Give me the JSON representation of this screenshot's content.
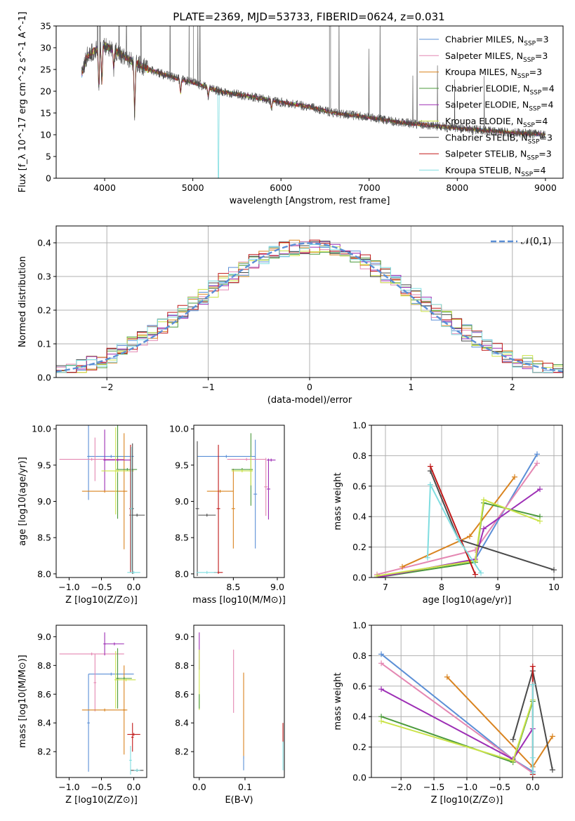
{
  "figure": {
    "title": "PLATE=2369, MJD=53733, FIBERID=0624, z=0.031"
  },
  "models": [
    {
      "name": "Chabrier MILES",
      "n_ssp": "3",
      "color": "#5b8fd6"
    },
    {
      "name": "Salpeter MILES",
      "n_ssp": "3",
      "color": "#e487b2"
    },
    {
      "name": "Kroupa MILES",
      "n_ssp": "3",
      "color": "#d9831f"
    },
    {
      "name": "Chabrier ELODIE",
      "n_ssp": "4",
      "color": "#4b9a3c"
    },
    {
      "name": "Salpeter ELODIE",
      "n_ssp": "4",
      "color": "#9d2eb5"
    },
    {
      "name": "Kroupa ELODIE",
      "n_ssp": "4",
      "color": "#cbe34a"
    },
    {
      "name": "Chabrier STELIB",
      "n_ssp": "3",
      "color": "#4a4a4a"
    },
    {
      "name": "Salpeter STELIB",
      "n_ssp": "3",
      "color": "#c01818"
    },
    {
      "name": "Kroupa STELIB",
      "n_ssp": "4",
      "color": "#7fdde0"
    }
  ],
  "chart_data": [
    {
      "id": "spectrum",
      "type": "line",
      "xlabel": "wavelength [Angstrom, rest frame]",
      "ylabel": "Flux [f_λ 10^-17 erg cm^-2 s^-1 A^-1]",
      "xlim": [
        3450,
        9200
      ],
      "ylim": [
        0,
        35
      ],
      "xticks": [
        4000,
        5000,
        6000,
        7000,
        8000,
        9000
      ],
      "yticks": [
        0,
        5,
        10,
        15,
        20,
        25,
        30,
        35
      ],
      "grid": false,
      "legend": "top-right",
      "continuum": {
        "x": [
          3740,
          3800,
          3900,
          4000,
          4100,
          4300,
          4500,
          4800,
          5000,
          5300,
          5600,
          6000,
          6300,
          6600,
          7000,
          7300,
          7500,
          8000,
          8500,
          9000
        ],
        "y": [
          24,
          28,
          29.5,
          30.5,
          29.5,
          27,
          25,
          23,
          22,
          20,
          19,
          17.5,
          16.5,
          15,
          14,
          13,
          12.5,
          11.5,
          10.7,
          10
        ]
      },
      "absorption_lines": [
        {
          "x": 3934,
          "depth": 9
        },
        {
          "x": 3969,
          "depth": 8
        },
        {
          "x": 4102,
          "depth": 4
        },
        {
          "x": 4340,
          "depth": 12
        },
        {
          "x": 4861,
          "depth": 3
        },
        {
          "x": 5175,
          "depth": 2
        },
        {
          "x": 5893,
          "depth": 2
        }
      ],
      "model_dropouts": [
        {
          "x": 3880,
          "model": "Kroupa MILES"
        },
        {
          "x": 5290,
          "model": "Kroupa STELIB"
        },
        {
          "x": 6790,
          "model": "Kroupa MILES"
        },
        {
          "x": 7420,
          "model": "Kroupa MILES"
        }
      ]
    },
    {
      "id": "residuals",
      "type": "line",
      "xlabel": "(data-model)/error",
      "ylabel": "Normed distribution",
      "xlim": [
        -2.5,
        2.5
      ],
      "ylim": [
        0,
        0.45
      ],
      "xticks": [
        -2,
        -1,
        0,
        1,
        2
      ],
      "xtick_labels": [
        "−2",
        "−1",
        "0",
        "1",
        "2"
      ],
      "yticks": [
        0,
        0.1,
        0.2,
        0.3,
        0.4
      ],
      "ytick_labels": [
        "0.0",
        "0.1",
        "0.2",
        "0.3",
        "0.4"
      ],
      "grid": true,
      "legend": "top-right",
      "reference_label": "𝒩(0,1)",
      "reference_color": "#5b8fd6",
      "histogram_bin_width": 0.1
    },
    {
      "id": "age_vs_Z",
      "type": "scatter",
      "xlabel": "Z [log10(Z/Z⊙)]",
      "ylabel": "age  [log10(age/yr)]",
      "xlim": [
        -1.2,
        0.2
      ],
      "ylim": [
        7.95,
        10.05
      ],
      "xticks": [
        -1,
        -0.5,
        0
      ],
      "xtick_labels": [
        "−1.0",
        "−0.5",
        "0.0"
      ],
      "yticks": [
        8,
        8.5,
        9,
        9.5,
        10
      ],
      "ytick_labels": [
        "8.0",
        "8.5",
        "9.0",
        "9.5",
        "10.0"
      ],
      "points": [
        {
          "x": -0.35,
          "y": 9.62,
          "xerr": 0.35,
          "yerr": 0.02,
          "color": "#5b8fd6"
        },
        {
          "x": -0.7,
          "y": 9.62,
          "xerr": 0.02,
          "yerr": 0.6,
          "color": "#5b8fd6"
        },
        {
          "x": -0.65,
          "y": 9.58,
          "xerr": 0.5,
          "yerr": 0.02,
          "color": "#e487b2"
        },
        {
          "x": -0.6,
          "y": 9.58,
          "xerr": 0.02,
          "yerr": 0.3,
          "color": "#e487b2"
        },
        {
          "x": -0.45,
          "y": 9.14,
          "xerr": 0.35,
          "yerr": 0.02,
          "color": "#d9831f"
        },
        {
          "x": -0.15,
          "y": 9.14,
          "xerr": 0.02,
          "yerr": 0.8,
          "color": "#d9831f"
        },
        {
          "x": -0.1,
          "y": 9.44,
          "xerr": 0.15,
          "yerr": 0.02,
          "color": "#4b9a3c"
        },
        {
          "x": -0.25,
          "y": 9.44,
          "xerr": 0.02,
          "yerr": 0.68,
          "color": "#4b9a3c"
        },
        {
          "x": -0.45,
          "y": 9.57,
          "xerr": 0.02,
          "yerr": 0.42,
          "color": "#9d2eb5"
        },
        {
          "x": -0.25,
          "y": 9.57,
          "xerr": 0.2,
          "yerr": 0.02,
          "color": "#9d2eb5"
        },
        {
          "x": -0.25,
          "y": 9.42,
          "xerr": 0.25,
          "yerr": 0.02,
          "color": "#cbe34a"
        },
        {
          "x": -0.28,
          "y": 9.42,
          "xerr": 0.02,
          "yerr": 0.6,
          "color": "#cbe34a"
        },
        {
          "x": 0.05,
          "y": 8.81,
          "xerr": 0.12,
          "yerr": 0.02,
          "color": "#4a4a4a"
        },
        {
          "x": -0.02,
          "y": 8.9,
          "xerr": 0.02,
          "yerr": 0.9,
          "color": "#4a4a4a"
        },
        {
          "x": -0.05,
          "y": 8.9,
          "xerr": 0.02,
          "yerr": 0.88,
          "color": "#c01818"
        },
        {
          "x": 0.0,
          "y": 8.02,
          "xerr": 0.1,
          "yerr": 0.02,
          "color": "#7fdde0"
        },
        {
          "x": -0.04,
          "y": 8.9,
          "xerr": 0.02,
          "yerr": 0.85,
          "color": "#7fdde0"
        }
      ]
    },
    {
      "id": "age_vs_mass",
      "type": "scatter",
      "xlabel": "mass [log10(M/M⊙)]",
      "ylabel": "",
      "xlim": [
        8.05,
        9.08
      ],
      "ylim": [
        7.95,
        10.05
      ],
      "xticks": [
        8.5,
        9
      ],
      "xtick_labels": [
        "8.5",
        "9.0"
      ],
      "yticks": [
        8,
        8.5,
        9,
        9.5,
        10
      ],
      "ytick_labels": [
        "8.0",
        "8.5",
        "9.0",
        "9.5",
        "10.0"
      ],
      "points": [
        {
          "x": 8.42,
          "y": 9.62,
          "xerr": 0.33,
          "yerr": 0.02,
          "color": "#5b8fd6"
        },
        {
          "x": 8.75,
          "y": 9.1,
          "xerr": 0.02,
          "yerr": 0.75,
          "color": "#5b8fd6"
        },
        {
          "x": 8.65,
          "y": 9.58,
          "xerr": 0.22,
          "yerr": 0.02,
          "color": "#e487b2"
        },
        {
          "x": 8.87,
          "y": 9.2,
          "xerr": 0.02,
          "yerr": 0.4,
          "color": "#e487b2"
        },
        {
          "x": 8.35,
          "y": 9.14,
          "xerr": 0.15,
          "yerr": 0.02,
          "color": "#d9831f"
        },
        {
          "x": 8.5,
          "y": 8.9,
          "xerr": 0.02,
          "yerr": 0.55,
          "color": "#d9831f"
        },
        {
          "x": 8.7,
          "y": 9.44,
          "xerr": 0.02,
          "yerr": 0.5,
          "color": "#4b9a3c"
        },
        {
          "x": 8.6,
          "y": 9.44,
          "xerr": 0.12,
          "yerr": 0.02,
          "color": "#4b9a3c"
        },
        {
          "x": 8.9,
          "y": 9.17,
          "xerr": 0.02,
          "yerr": 0.42,
          "color": "#9d2eb5"
        },
        {
          "x": 8.93,
          "y": 9.57,
          "xerr": 0.05,
          "yerr": 0.02,
          "color": "#9d2eb5"
        },
        {
          "x": 8.7,
          "y": 9.42,
          "xerr": 0.02,
          "yerr": 0.2,
          "color": "#cbe34a"
        },
        {
          "x": 8.6,
          "y": 9.42,
          "xerr": 0.12,
          "yerr": 0.02,
          "color": "#cbe34a"
        },
        {
          "x": 8.2,
          "y": 8.81,
          "xerr": 0.1,
          "yerr": 0.02,
          "color": "#4a4a4a"
        },
        {
          "x": 8.09,
          "y": 8.9,
          "xerr": 0.02,
          "yerr": 0.93,
          "color": "#4a4a4a"
        },
        {
          "x": 8.33,
          "y": 8.9,
          "xerr": 0.02,
          "yerr": 0.88,
          "color": "#c01818"
        },
        {
          "x": 8.33,
          "y": 8.02,
          "xerr": 0.05,
          "yerr": 0.02,
          "color": "#c01818"
        },
        {
          "x": 8.2,
          "y": 8.02,
          "xerr": 0.12,
          "yerr": 0.02,
          "color": "#7fdde0"
        }
      ]
    },
    {
      "id": "weight_vs_age",
      "type": "line",
      "xlabel": "age  [log10(age/yr)]",
      "ylabel": "mass weight",
      "xlim": [
        6.75,
        10.15
      ],
      "ylim": [
        0,
        1
      ],
      "xticks": [
        7,
        8,
        9,
        10
      ],
      "xtick_labels": [
        "7",
        "8",
        "9",
        "10"
      ],
      "yticks": [
        0,
        0.2,
        0.4,
        0.6,
        0.8,
        1
      ],
      "ytick_labels": [
        "0.0",
        "0.2",
        "0.4",
        "0.6",
        "0.8",
        "1.0"
      ],
      "grid": true,
      "series": [
        {
          "model": "Chabrier MILES",
          "x": [
            8.6,
            9.7
          ],
          "y": [
            0.12,
            0.81
          ]
        },
        {
          "model": "Salpeter MILES",
          "x": [
            6.85,
            8.6,
            9.7
          ],
          "y": [
            0.02,
            0.18,
            0.75
          ]
        },
        {
          "model": "Kroupa MILES",
          "x": [
            7.3,
            8.5,
            9.3
          ],
          "y": [
            0.07,
            0.27,
            0.66
          ]
        },
        {
          "model": "Chabrier ELODIE",
          "x": [
            6.85,
            8.6,
            8.75,
            9.75
          ],
          "y": [
            0.0,
            0.1,
            0.49,
            0.4
          ]
        },
        {
          "model": "Salpeter ELODIE",
          "x": [
            6.85,
            8.6,
            8.75,
            9.75
          ],
          "y": [
            0.0,
            0.12,
            0.32,
            0.58
          ]
        },
        {
          "model": "Kroupa ELODIE",
          "x": [
            6.85,
            8.6,
            8.75,
            9.75
          ],
          "y": [
            0.01,
            0.11,
            0.51,
            0.37
          ]
        },
        {
          "model": "Chabrier STELIB",
          "x": [
            7.8,
            8.3,
            10.0
          ],
          "y": [
            0.7,
            0.25,
            0.05
          ]
        },
        {
          "model": "Salpeter STELIB",
          "x": [
            7.8,
            8.6
          ],
          "y": [
            0.73,
            0.02
          ]
        },
        {
          "model": "Kroupa STELIB",
          "x": [
            7.75,
            7.8,
            8.3,
            8.7
          ],
          "y": [
            0.13,
            0.61,
            0.25,
            0.03
          ]
        }
      ]
    },
    {
      "id": "mass_vs_Z",
      "type": "scatter",
      "xlabel": "Z [log10(Z/Z⊙)]",
      "ylabel": "mass [log10(M/M⊙)]",
      "xlim": [
        -1.2,
        0.2
      ],
      "ylim": [
        8.02,
        9.08
      ],
      "xticks": [
        -1,
        -0.5,
        0
      ],
      "xtick_labels": [
        "−1.0",
        "−0.5",
        "0.0"
      ],
      "yticks": [
        8.2,
        8.4,
        8.6,
        8.8,
        9
      ],
      "ytick_labels": [
        "8.2",
        "8.4",
        "8.6",
        "8.8",
        "9.0"
      ],
      "points": [
        {
          "x": -0.35,
          "y": 8.74,
          "xerr": 0.35,
          "yerr": 0.01,
          "color": "#5b8fd6"
        },
        {
          "x": -0.7,
          "y": 8.4,
          "xerr": 0.02,
          "yerr": 0.34,
          "color": "#5b8fd6"
        },
        {
          "x": -0.65,
          "y": 8.88,
          "xerr": 0.5,
          "yerr": 0.01,
          "color": "#e487b2"
        },
        {
          "x": -0.6,
          "y": 8.68,
          "xerr": 0.02,
          "yerr": 0.2,
          "color": "#e487b2"
        },
        {
          "x": -0.45,
          "y": 8.49,
          "xerr": 0.35,
          "yerr": 0.01,
          "color": "#d9831f"
        },
        {
          "x": -0.15,
          "y": 8.49,
          "xerr": 0.02,
          "yerr": 0.31,
          "color": "#d9831f"
        },
        {
          "x": -0.25,
          "y": 8.71,
          "xerr": 0.02,
          "yerr": 0.21,
          "color": "#4b9a3c"
        },
        {
          "x": -0.15,
          "y": 8.71,
          "xerr": 0.12,
          "yerr": 0.01,
          "color": "#4b9a3c"
        },
        {
          "x": -0.45,
          "y": 8.95,
          "xerr": 0.02,
          "yerr": 0.08,
          "color": "#9d2eb5"
        },
        {
          "x": -0.3,
          "y": 8.95,
          "xerr": 0.15,
          "yerr": 0.01,
          "color": "#9d2eb5"
        },
        {
          "x": -0.12,
          "y": 8.7,
          "xerr": 0.15,
          "yerr": 0.01,
          "color": "#cbe34a"
        },
        {
          "x": -0.28,
          "y": 8.7,
          "xerr": 0.02,
          "yerr": 0.2,
          "color": "#cbe34a"
        },
        {
          "x": 0.05,
          "y": 8.07,
          "xerr": 0.1,
          "yerr": 0.01,
          "color": "#4a4a4a"
        },
        {
          "x": -0.02,
          "y": 8.3,
          "xerr": 0.02,
          "yerr": 0.1,
          "color": "#c01818"
        },
        {
          "x": 0.0,
          "y": 8.32,
          "xerr": 0.1,
          "yerr": 0.01,
          "color": "#c01818"
        },
        {
          "x": -0.05,
          "y": 8.14,
          "xerr": 0.02,
          "yerr": 0.1,
          "color": "#7fdde0"
        },
        {
          "x": 0.05,
          "y": 8.07,
          "xerr": 0.05,
          "yerr": 0.01,
          "color": "#7fdde0"
        }
      ]
    },
    {
      "id": "mass_vs_ebv",
      "type": "scatter",
      "xlabel": "E(B-V)",
      "ylabel": "",
      "xlim": [
        -0.012,
        0.186
      ],
      "ylim": [
        8.02,
        9.08
      ],
      "xticks": [
        0,
        0.1
      ],
      "xtick_labels": [
        "0.0",
        "0.1"
      ],
      "yticks": [
        8.2,
        8.4,
        8.6,
        8.8,
        9
      ],
      "ytick_labels": [
        "8.2",
        "8.4",
        "8.6",
        "8.8",
        "9.0"
      ],
      "points": [
        {
          "x": 0.0,
          "y": 8.9,
          "xerr": 0.0,
          "yerr": 0.13,
          "color": "#9d2eb5"
        },
        {
          "x": 0.0,
          "y": 8.7,
          "xerr": 0.0,
          "yerr": 0.21,
          "color": "#cbe34a"
        },
        {
          "x": 0.0,
          "y": 8.55,
          "xerr": 0.0,
          "yerr": 0.05,
          "color": "#4b9a3c"
        },
        {
          "x": 0.075,
          "y": 8.69,
          "xerr": 0.0,
          "yerr": 0.22,
          "color": "#e487b2"
        },
        {
          "x": 0.097,
          "y": 8.45,
          "xerr": 0.0,
          "yerr": 0.3,
          "color": "#d9831f"
        },
        {
          "x": 0.097,
          "y": 8.12,
          "xerr": 0.0,
          "yerr": 0.05,
          "color": "#5b8fd6"
        },
        {
          "x": 0.183,
          "y": 8.33,
          "xerr": 0.0,
          "yerr": 0.07,
          "color": "#c01818"
        },
        {
          "x": 0.183,
          "y": 8.17,
          "xerr": 0.0,
          "yerr": 0.1,
          "color": "#7fdde0"
        }
      ]
    },
    {
      "id": "weight_vs_Z",
      "type": "line",
      "xlabel": "Z [log10(Z/Z⊙)]",
      "ylabel": "mass weight",
      "xlim": [
        -2.45,
        0.45
      ],
      "ylim": [
        0,
        1
      ],
      "xticks": [
        -2,
        -1.5,
        -1,
        -0.5,
        0
      ],
      "xtick_labels": [
        "−2.0",
        "−1.5",
        "−1.0",
        "−0.5",
        "0.0"
      ],
      "yticks": [
        0,
        0.2,
        0.4,
        0.6,
        0.8,
        1
      ],
      "ytick_labels": [
        "0.0",
        "0.2",
        "0.4",
        "0.6",
        "0.8",
        "1.0"
      ],
      "grid": true,
      "series": [
        {
          "model": "Chabrier MILES",
          "x": [
            -2.3,
            -0.3,
            0.0
          ],
          "y": [
            0.81,
            0.12,
            0.04
          ]
        },
        {
          "model": "Salpeter MILES",
          "x": [
            -2.3,
            -0.3,
            0.0
          ],
          "y": [
            0.75,
            0.12,
            0.03
          ]
        },
        {
          "model": "Kroupa MILES",
          "x": [
            -1.3,
            0.0,
            0.3
          ],
          "y": [
            0.66,
            0.07,
            0.27
          ]
        },
        {
          "model": "Chabrier ELODIE",
          "x": [
            -2.3,
            -0.3,
            0.0
          ],
          "y": [
            0.4,
            0.1,
            0.5
          ]
        },
        {
          "model": "Salpeter ELODIE",
          "x": [
            -2.3,
            -0.3,
            0.0
          ],
          "y": [
            0.58,
            0.12,
            0.32
          ]
        },
        {
          "model": "Kroupa ELODIE",
          "x": [
            -2.3,
            -0.3,
            0.0
          ],
          "y": [
            0.37,
            0.11,
            0.51
          ]
        },
        {
          "model": "Chabrier STELIB",
          "x": [
            -0.3,
            0.0,
            0.3
          ],
          "y": [
            0.25,
            0.7,
            0.05
          ]
        },
        {
          "model": "Salpeter STELIB",
          "x": [
            0.0,
            0.0
          ],
          "y": [
            0.02,
            0.73
          ]
        },
        {
          "model": "Kroupa STELIB",
          "x": [
            0.0,
            0.0,
            0.0
          ],
          "y": [
            0.03,
            0.61,
            0.13
          ]
        }
      ]
    }
  ]
}
